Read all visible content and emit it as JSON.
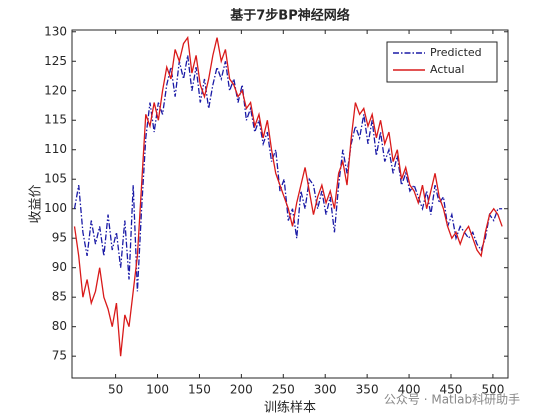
{
  "chart_data": {
    "type": "line",
    "title": "基于7步BP神经网络",
    "x_label": "训练样本",
    "y_label": "收益价",
    "watermark": "公众号 · Matlab科研助手",
    "x": [
      1,
      6,
      11,
      16,
      21,
      26,
      31,
      36,
      41,
      46,
      51,
      56,
      61,
      66,
      71,
      76,
      81,
      86,
      91,
      96,
      101,
      106,
      111,
      116,
      121,
      126,
      131,
      136,
      141,
      146,
      151,
      156,
      161,
      166,
      171,
      176,
      181,
      186,
      191,
      196,
      201,
      206,
      211,
      216,
      221,
      226,
      231,
      236,
      241,
      246,
      251,
      256,
      261,
      266,
      271,
      276,
      281,
      286,
      291,
      296,
      301,
      306,
      311,
      316,
      321,
      326,
      331,
      336,
      341,
      346,
      351,
      356,
      361,
      366,
      371,
      376,
      381,
      386,
      391,
      396,
      401,
      406,
      411,
      416,
      421,
      426,
      431,
      436,
      441,
      446,
      451,
      456,
      461,
      466,
      471,
      476,
      481,
      486,
      491,
      496,
      501,
      506,
      511
    ],
    "series": [
      {
        "name": "Predicted",
        "color": "#1a1aa6",
        "dash": "dashdot",
        "values": [
          100,
          104,
          96,
          92,
          98,
          94,
          97,
          92,
          99,
          93,
          96,
          90,
          98,
          88,
          104,
          86,
          100,
          112,
          118,
          113,
          118,
          116,
          121,
          124,
          119,
          125,
          122,
          126,
          120,
          124,
          118,
          122,
          117,
          121,
          124,
          122,
          125,
          120,
          122,
          118,
          121,
          115,
          117,
          113,
          115,
          111,
          113,
          108,
          110,
          103,
          105,
          98,
          100,
          95,
          103,
          100,
          105,
          104,
          100,
          103,
          99,
          102,
          96,
          104,
          110,
          106,
          111,
          114,
          112,
          116,
          111,
          115,
          109,
          113,
          108,
          110,
          106,
          109,
          104,
          106,
          103,
          104,
          102,
          100,
          103,
          99,
          104,
          101,
          102,
          97,
          99,
          95,
          97,
          96,
          95,
          96,
          94,
          93,
          95,
          99,
          98,
          100,
          100
        ]
      },
      {
        "name": "Actual",
        "color": "#d91a1a",
        "dash": "solid",
        "values": [
          97,
          92,
          85,
          88,
          84,
          86,
          90,
          85,
          83,
          80,
          84,
          75,
          82,
          80,
          86,
          92,
          104,
          116,
          114,
          118,
          115,
          120,
          124,
          122,
          127,
          125,
          128,
          129,
          123,
          126,
          121,
          119,
          122,
          126,
          129,
          125,
          127,
          122,
          121,
          119,
          120,
          117,
          118,
          114,
          116,
          112,
          115,
          110,
          106,
          104,
          102,
          100,
          97,
          101,
          104,
          107,
          103,
          99,
          102,
          104,
          101,
          103,
          100,
          106,
          108,
          104,
          112,
          118,
          116,
          117,
          114,
          116,
          112,
          115,
          111,
          113,
          108,
          110,
          105,
          107,
          104,
          103,
          101,
          104,
          100,
          103,
          106,
          102,
          100,
          97,
          95,
          96,
          94,
          96,
          97,
          95,
          93,
          92,
          96,
          99,
          100,
          99,
          97
        ]
      }
    ],
    "xlim": [
      -2,
      518
    ],
    "xticks": [
      50,
      100,
      150,
      200,
      250,
      300,
      350,
      400,
      450,
      500
    ],
    "ylim": [
      71.3,
      130.3
    ],
    "yticks": [
      75,
      80,
      85,
      90,
      95,
      100,
      105,
      110,
      115,
      120,
      125,
      130
    ],
    "legend": "top-right"
  }
}
